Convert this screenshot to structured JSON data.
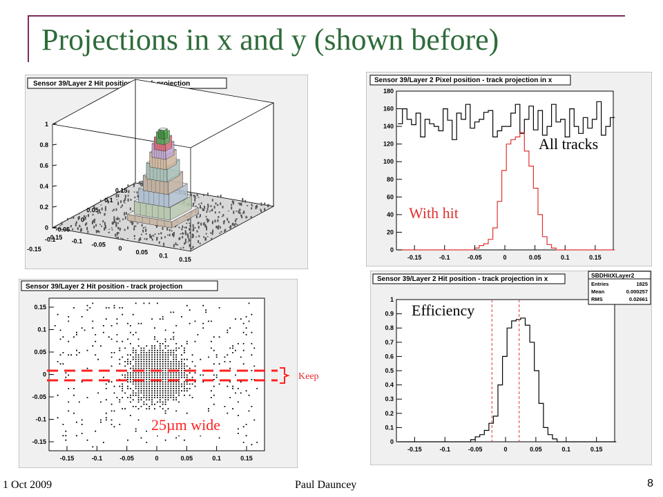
{
  "slide": {
    "title": "Projections in x and y (shown before)",
    "footer_date": "1 Oct 2009",
    "footer_author": "Paul Dauncey",
    "page_number": "8"
  },
  "annotations": {
    "all_tracks": "All tracks",
    "with_hit": "With hit",
    "efficiency": "Efficiency",
    "keep": "Keep",
    "width": "25µm wide"
  },
  "colors": {
    "title": "#2e6b3a",
    "accent_line": "#7a2b5a",
    "with_hit": "#e03030",
    "annotation_red": "#ff2020"
  },
  "chart_data": [
    {
      "type": "surface3d",
      "title": "Sensor 39/Layer 2 Hit position - track projection",
      "xlim": [
        -0.15,
        0.15
      ],
      "ylim": [
        -0.15,
        0.15
      ],
      "zlim": [
        0,
        1
      ],
      "x_ticks": [
        "-0.15",
        "-0.1",
        "-0.05",
        "0",
        "0.05",
        "0.1",
        "0.15"
      ],
      "y_ticks": [
        "-0.15",
        "-0.1",
        "-0.05",
        "0",
        "0.05",
        "0.1",
        "0.15"
      ],
      "z_ticks": [
        "0",
        "0.2",
        "0.4",
        "0.6",
        "0.8",
        "1"
      ],
      "peak_value": 0.85
    },
    {
      "type": "scatter",
      "title": "Sensor 39/Layer 2 Hit position - track projection",
      "xlim": [
        -0.18,
        0.18
      ],
      "ylim": [
        -0.17,
        0.17
      ],
      "x_ticks": [
        "-0.15",
        "-0.1",
        "-0.05",
        "0",
        "0.05",
        "0.1",
        "0.15"
      ],
      "y_ticks": [
        "-0.15",
        "-0.1",
        "-0.05",
        "0",
        "0.05",
        "0.1",
        "0.15"
      ],
      "selection_band": [
        -0.0125,
        0.0125
      ]
    },
    {
      "type": "line",
      "title": "Sensor 39/Layer 2 Pixel position - track projection in x",
      "xlim": [
        -0.18,
        0.18
      ],
      "ylim": [
        0,
        180
      ],
      "x_ticks": [
        "-0.15",
        "-0.1",
        "-0.05",
        "0",
        "0.05",
        "0.1",
        "0.15"
      ],
      "y_ticks": [
        "0",
        "20",
        "40",
        "60",
        "80",
        "100",
        "120",
        "140",
        "160",
        "180"
      ],
      "x_start": -0.1775,
      "bin_width": 0.0075,
      "series": [
        {
          "name": "All tracks",
          "values": [
            143,
            160,
            148,
            142,
            155,
            128,
            148,
            143,
            140,
            135,
            160,
            147,
            125,
            155,
            148,
            165,
            138,
            145,
            148,
            156,
            158,
            128,
            135,
            140,
            140,
            155,
            165,
            132,
            148,
            163,
            136,
            158,
            130,
            140,
            165,
            145,
            148,
            128,
            160,
            140,
            132,
            150,
            138,
            148,
            168,
            130,
            140,
            150
          ]
        },
        {
          "name": "With hit",
          "values": [
            0,
            0,
            0,
            0,
            0,
            0,
            0,
            0,
            0,
            0,
            0,
            0,
            0,
            0,
            0,
            0,
            0,
            2,
            5,
            7,
            12,
            25,
            55,
            90,
            120,
            125,
            128,
            133,
            112,
            95,
            70,
            40,
            15,
            6,
            2,
            0,
            0,
            0,
            0,
            0,
            0,
            0,
            0,
            0,
            0,
            0,
            0,
            0
          ]
        }
      ]
    },
    {
      "type": "line",
      "title": "Sensor 39/Layer 2 Hit position - track projection in x",
      "xlim": [
        -0.18,
        0.18
      ],
      "ylim": [
        0,
        1
      ],
      "x_ticks": [
        "-0.15",
        "-0.1",
        "-0.05",
        "0",
        "0.05",
        "0.1",
        "0.15"
      ],
      "y_ticks": [
        "0",
        "0.1",
        "0.2",
        "0.3",
        "0.4",
        "0.5",
        "0.6",
        "0.7",
        "0.8",
        "0.9",
        "1"
      ],
      "x_start": -0.1775,
      "bin_width": 0.0075,
      "cut_lines": [
        -0.0225,
        0.0225
      ],
      "stats": {
        "name": "SBDHitXLayer2",
        "entries": "1825",
        "mean": "0.000257",
        "rms": "0.02661"
      },
      "series": [
        {
          "name": "Efficiency",
          "values": [
            0,
            0,
            0,
            0,
            0,
            0,
            0,
            0,
            0,
            0,
            0,
            0,
            0,
            0,
            0,
            0,
            0.015,
            0.035,
            0.05,
            0.08,
            0.13,
            0.18,
            0.4,
            0.6,
            0.8,
            0.85,
            0.86,
            0.87,
            0.82,
            0.7,
            0.5,
            0.27,
            0.1,
            0.05,
            0.02,
            0,
            0,
            0,
            0,
            0,
            0,
            0,
            0,
            0,
            0,
            0,
            0,
            0
          ]
        }
      ]
    }
  ]
}
